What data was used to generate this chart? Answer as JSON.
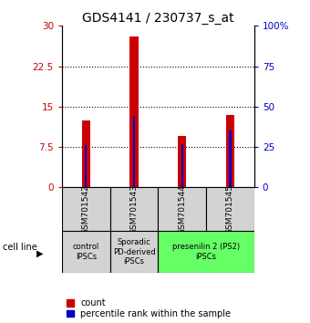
{
  "title": "GDS4141 / 230737_s_at",
  "samples": [
    "GSM701542",
    "GSM701543",
    "GSM701544",
    "GSM701545"
  ],
  "count_values": [
    12.5,
    28.0,
    9.5,
    13.5
  ],
  "percentile_values": [
    26,
    44,
    27,
    35
  ],
  "ylim_left": [
    0,
    30
  ],
  "ylim_right": [
    0,
    100
  ],
  "yticks_left": [
    0,
    7.5,
    15,
    22.5,
    30
  ],
  "yticks_right": [
    0,
    25,
    50,
    75,
    100
  ],
  "ytick_labels_left": [
    "0",
    "7.5",
    "15",
    "22.5",
    "30"
  ],
  "ytick_labels_right": [
    "0",
    "25",
    "50",
    "75",
    "100%"
  ],
  "bar_color_count": "#cc0000",
  "bar_color_percentile": "#0000cc",
  "count_bar_width": 0.18,
  "pct_bar_width": 0.04,
  "cell_line_labels": [
    "control\nIPSCs",
    "Sporadic\nPD-derived\niPSCs",
    "presenilin 2 (PS2)\niPSCs"
  ],
  "cell_line_spans": [
    [
      0,
      1
    ],
    [
      1,
      2
    ],
    [
      2,
      4
    ]
  ],
  "cell_line_colors": [
    "#d3d3d3",
    "#d3d3d3",
    "#66ff66"
  ],
  "sample_box_color": "#d3d3d3",
  "legend_count_label": "count",
  "legend_percentile_label": "percentile rank within the sample",
  "cell_line_text": "cell line",
  "title_fontsize": 10,
  "tick_fontsize": 7.5,
  "sample_fontsize": 6.5,
  "cl_fontsize": 6.0,
  "legend_fontsize": 7.0
}
